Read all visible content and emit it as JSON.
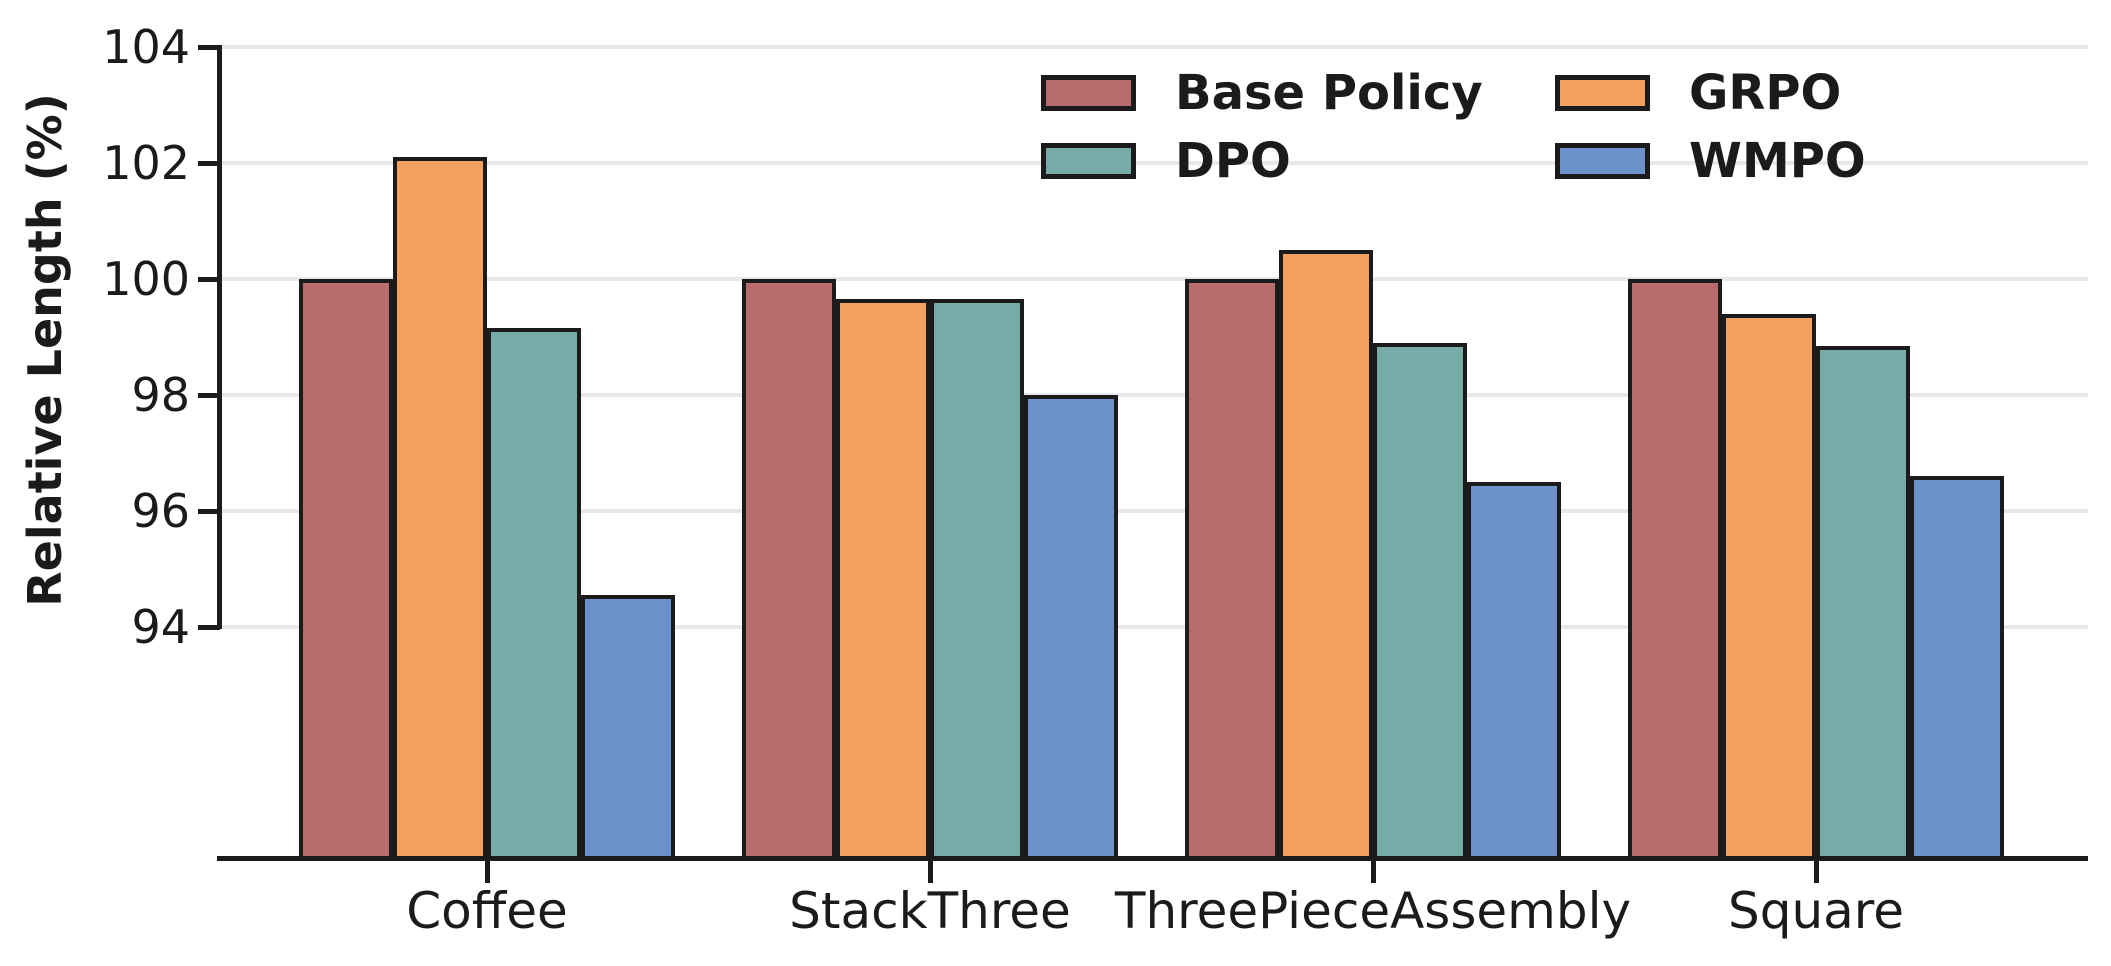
{
  "chart_data": {
    "type": "bar",
    "title": "",
    "categories": [
      "Coffee",
      "StackThree",
      "ThreePieceAssembly",
      "Square"
    ],
    "series": [
      {
        "name": "Base Policy",
        "color": "#B86C6C",
        "values": [
          100.0,
          100.0,
          100.0,
          100.0
        ]
      },
      {
        "name": "GRPO",
        "color": "#F2A160",
        "values": [
          102.1,
          99.65,
          100.5,
          99.4
        ]
      },
      {
        "name": "DPO",
        "color": "#77ABA8",
        "values": [
          99.15,
          99.65,
          98.9,
          98.85
        ]
      },
      {
        "name": "WMPO",
        "color": "#6C91CB",
        "values": [
          94.55,
          98.0,
          96.5,
          96.6
        ]
      }
    ],
    "bar_order": [
      "Base Policy",
      "GRPO",
      "DPO",
      "WMPO"
    ],
    "xlabel": "",
    "ylabel": "Relative Length (%)",
    "ylim": [
      90,
      104
    ],
    "yticks": [
      94,
      96,
      98,
      100,
      102,
      104
    ],
    "grid": true,
    "legend": {
      "position": "upper center-right, inside plot, no frame",
      "columns": [
        [
          "Base Policy",
          "DPO"
        ],
        [
          "GRPO",
          "WMPO"
        ]
      ]
    },
    "styles": {
      "bar_edge_color": "#1B1B1B",
      "grid_color": "#E8E8EA",
      "axis_color": "#1B1B1B",
      "text_color": "#1B1B1B",
      "background": "#FFFFFF"
    }
  }
}
